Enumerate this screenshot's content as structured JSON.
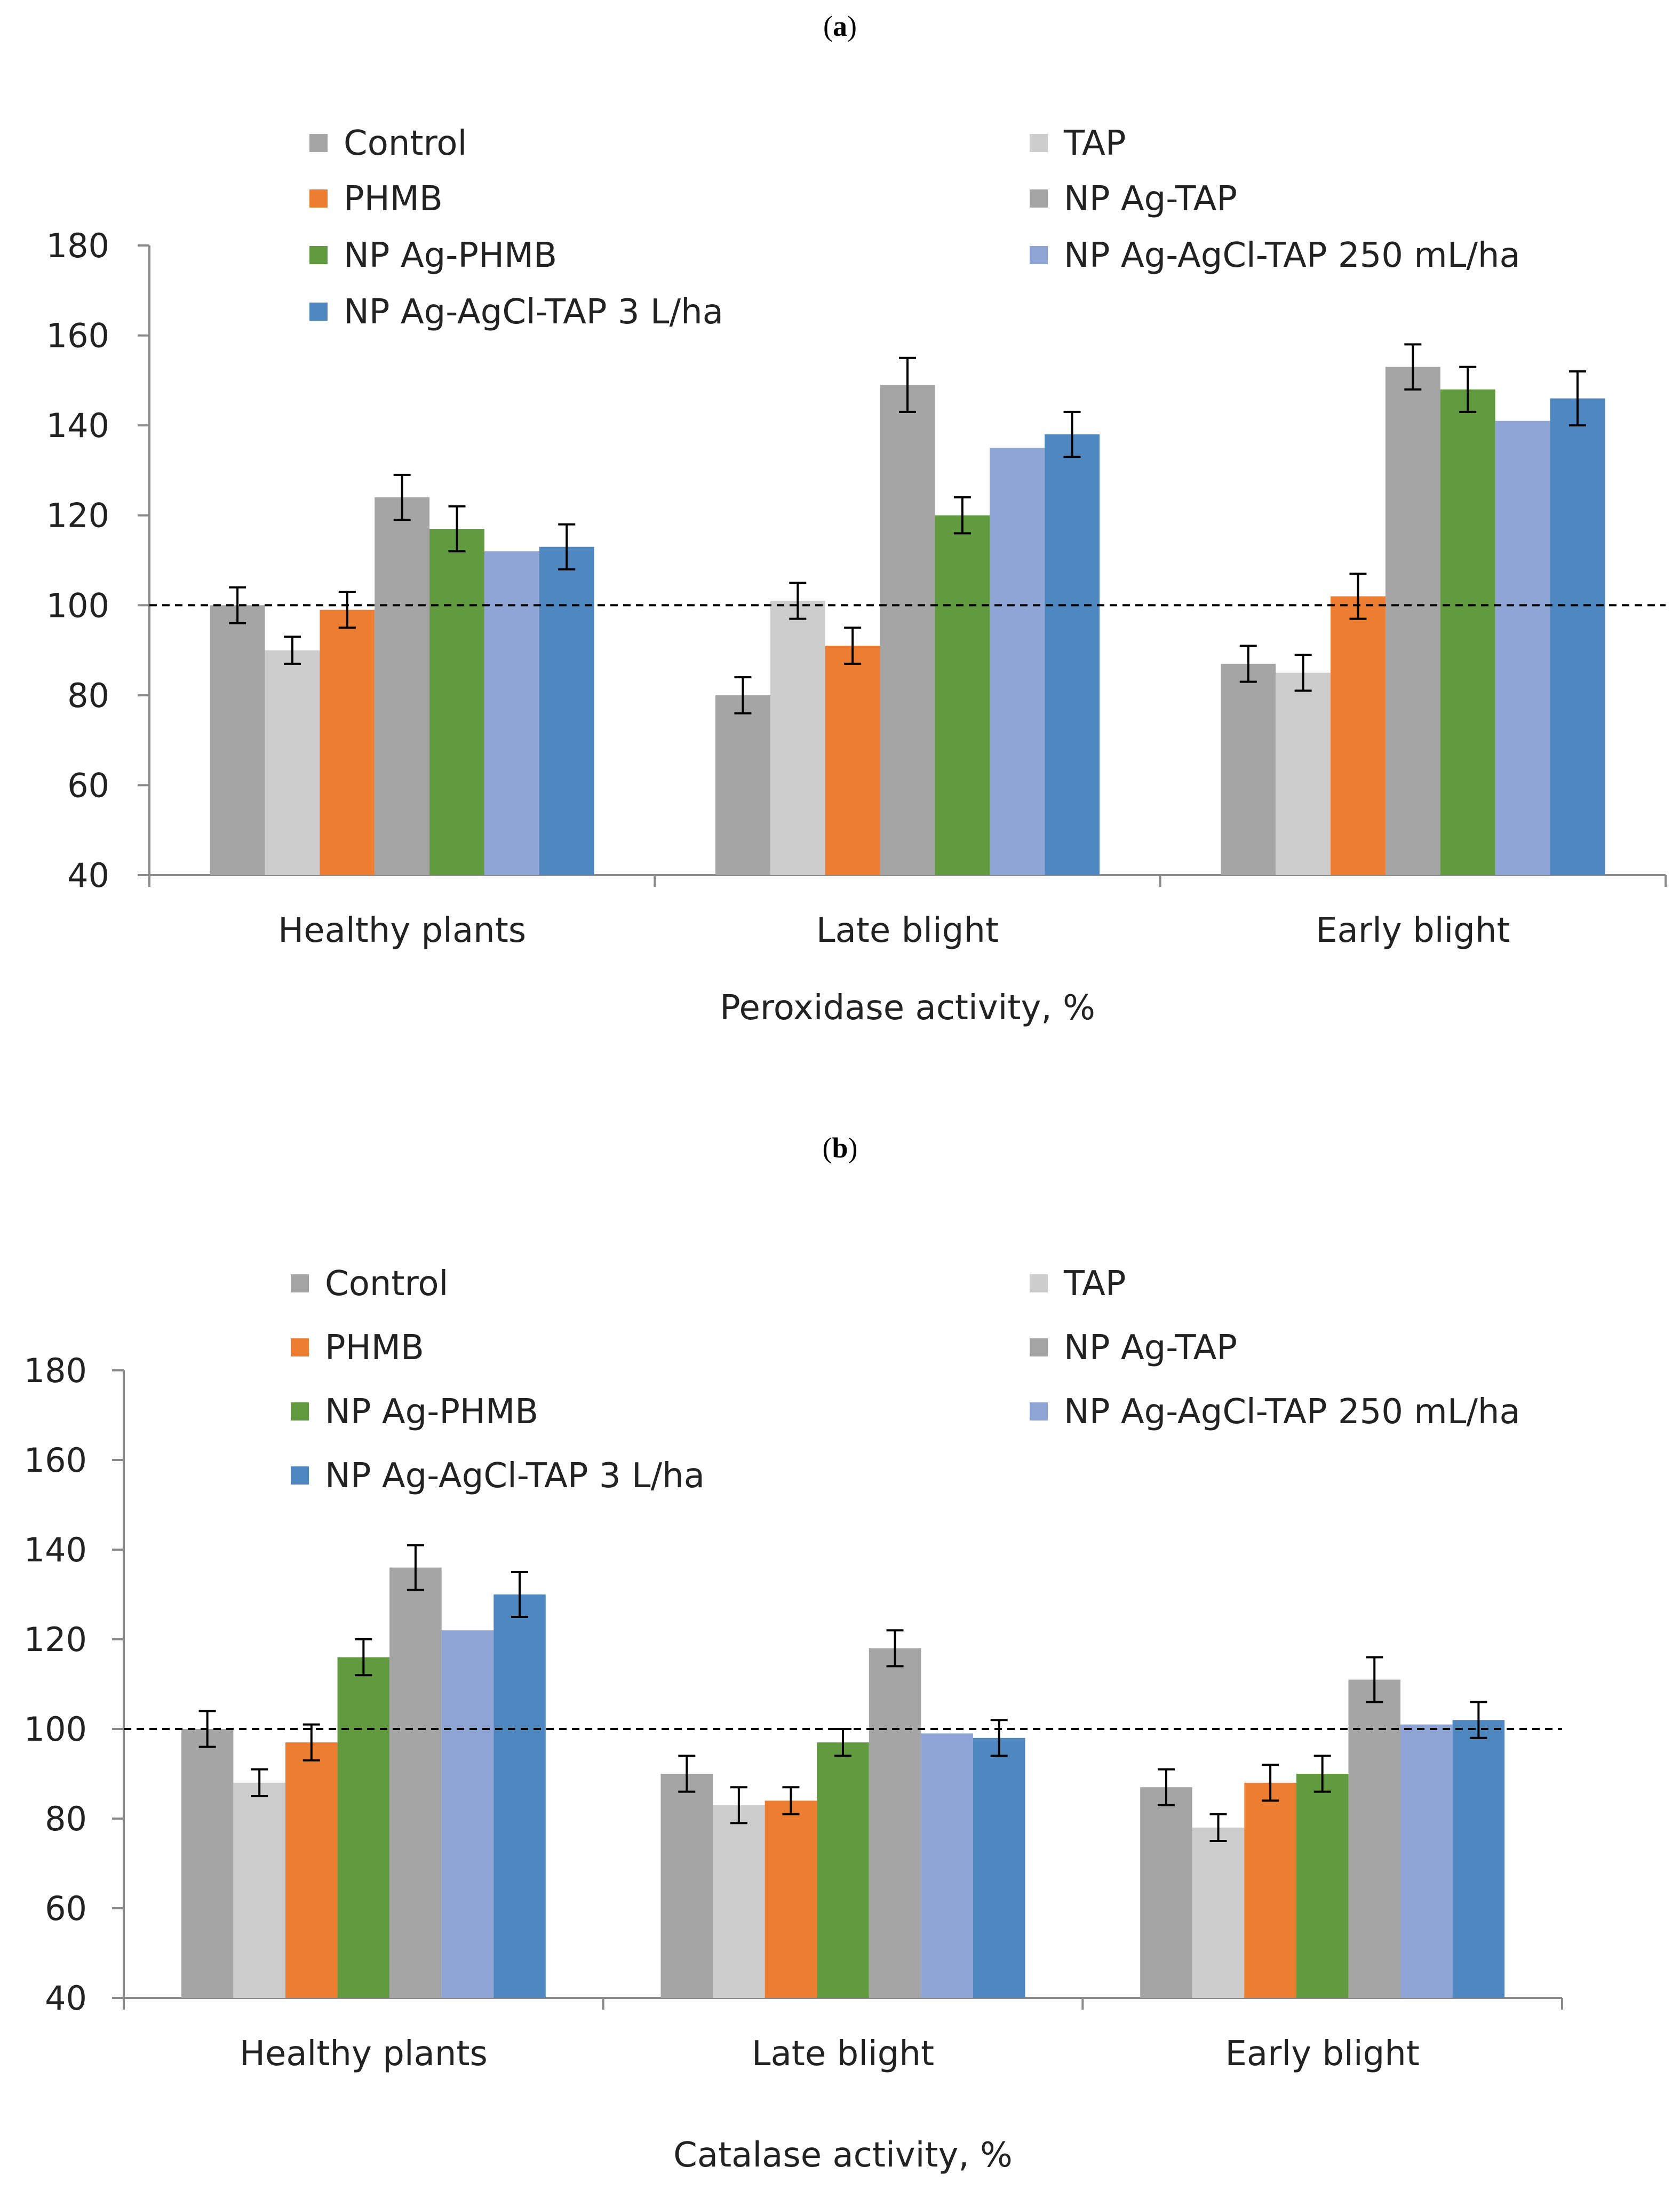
{
  "panels": [
    {
      "label_open": "(",
      "label_letter": "a",
      "label_close": ")",
      "chart_data": {
        "type": "bar",
        "title": "",
        "xlabel": "Peroxidase activity, %",
        "ylabel": "",
        "ylim": [
          40,
          180
        ],
        "yticks": [
          40,
          60,
          80,
          100,
          120,
          140,
          160,
          180
        ],
        "reference_line": 100,
        "categories": [
          "Healthy plants",
          "Late blight",
          "Early blight"
        ],
        "legend_order": [
          0,
          1,
          2,
          3,
          4,
          5,
          6
        ],
        "series": [
          {
            "name": "Control",
            "color": "#a5a5a5",
            "values": [
              100,
              80,
              87
            ],
            "errors": [
              4,
              4,
              4
            ]
          },
          {
            "name": "TAP",
            "color": "#cdcdcd",
            "values": [
              90,
              101,
              85
            ],
            "errors": [
              3,
              4,
              4
            ]
          },
          {
            "name": "PHMB",
            "color": "#ed7d31",
            "values": [
              99,
              91,
              102
            ],
            "errors": [
              4,
              4,
              5
            ]
          },
          {
            "name": "NP Ag-TAP",
            "color": "#a5a5a5",
            "values": [
              124,
              149,
              153
            ],
            "errors": [
              5,
              6,
              5
            ]
          },
          {
            "name": "NP Ag-PHMB",
            "color": "#629b3f",
            "values": [
              117,
              120,
              148
            ],
            "errors": [
              5,
              4,
              5
            ]
          },
          {
            "name": "NP Ag-AgCl-TAP 250 mL/ha",
            "color": "#8fa5d6",
            "values": [
              112,
              135,
              141
            ],
            "errors": [
              null,
              null,
              null
            ]
          },
          {
            "name": "NP Ag-AgCl-TAP 3 L/ha",
            "color": "#4f88c1",
            "values": [
              113,
              138,
              146
            ],
            "errors": [
              5,
              5,
              6
            ]
          }
        ]
      }
    },
    {
      "label_open": "(",
      "label_letter": "b",
      "label_close": ")",
      "chart_data": {
        "type": "bar",
        "title": "",
        "xlabel": "Catalase activity, %",
        "ylabel": "",
        "ylim": [
          40,
          180
        ],
        "yticks": [
          40,
          60,
          80,
          100,
          120,
          140,
          160,
          180
        ],
        "reference_line": 100,
        "categories": [
          "Healthy plants",
          "Late blight",
          "Early blight"
        ],
        "legend_order": [
          0,
          1,
          2,
          4,
          3,
          5,
          6
        ],
        "series": [
          {
            "name": "Control",
            "color": "#a5a5a5",
            "values": [
              100,
              90,
              87
            ],
            "errors": [
              4,
              4,
              4
            ]
          },
          {
            "name": "TAP",
            "color": "#cdcdcd",
            "values": [
              88,
              83,
              78
            ],
            "errors": [
              3,
              4,
              3
            ]
          },
          {
            "name": "PHMB",
            "color": "#ed7d31",
            "values": [
              97,
              84,
              88
            ],
            "errors": [
              4,
              3,
              4
            ]
          },
          {
            "name": "NP Ag-PHMB",
            "color": "#629b3f",
            "values": [
              116,
              97,
              90
            ],
            "errors": [
              4,
              3,
              4
            ]
          },
          {
            "name": "NP Ag-TAP",
            "color": "#a5a5a5",
            "values": [
              136,
              118,
              111
            ],
            "errors": [
              5,
              4,
              5
            ]
          },
          {
            "name": "NP Ag-AgCl-TAP 250 mL/ha",
            "color": "#8fa5d6",
            "values": [
              122,
              99,
              101
            ],
            "errors": [
              null,
              null,
              null
            ]
          },
          {
            "name": "NP Ag-AgCl-TAP 3 L/ha",
            "color": "#4f88c1",
            "values": [
              130,
              98,
              102
            ],
            "errors": [
              5,
              4,
              4
            ]
          }
        ]
      }
    }
  ]
}
